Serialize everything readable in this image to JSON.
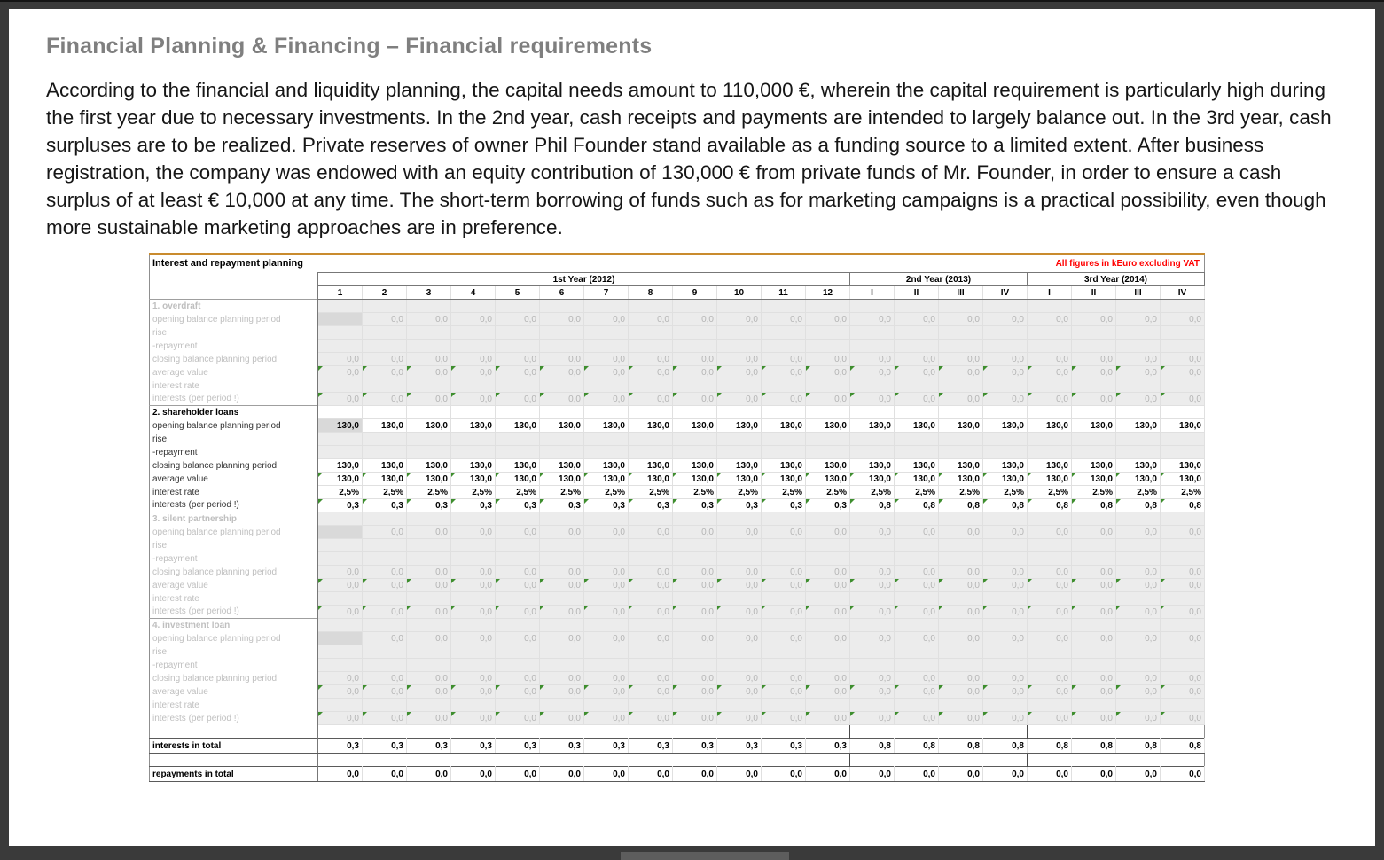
{
  "page": {
    "title": "Financial Planning & Financing – Financial requirements",
    "body": "According to the financial and liquidity planning, the capital needs amount to 110,000 €, wherein the capital requirement is particularly high during the first year due to necessary investments. In the 2nd year, cash receipts and payments are intended to largely balance out. In the 3rd year, cash surpluses are to be realized. Private reserves of owner Phil Founder stand available as a funding source to a limited extent. After business registration, the company was endowed with an equity contribution of 130,000 € from private funds of Mr. Founder, in order to ensure a cash surplus of at least € 10,000 at any time. The short-term borrowing of funds such as for marketing campaigns is a practical possibility, even though more sustainable marketing approaches are in preference."
  },
  "table": {
    "title": "Interest and repayment planning",
    "note": "All figures in kEuro excluding VAT",
    "colors": {
      "accent": "#c98b2e",
      "note": "#ff0000",
      "marker": "#3e8e2e"
    },
    "year_groups": [
      {
        "label": "1st Year (2012)",
        "span": 12
      },
      {
        "label": "2nd Year (2013)",
        "span": 4
      },
      {
        "label": "3rd Year (2014)",
        "span": 4
      }
    ],
    "period_headers": [
      "1",
      "2",
      "3",
      "4",
      "5",
      "6",
      "7",
      "8",
      "9",
      "10",
      "11",
      "12",
      "I",
      "II",
      "III",
      "IV",
      "I",
      "II",
      "III",
      "IV"
    ],
    "row_order": [
      "opening",
      "rise",
      "repayment",
      "closing",
      "average",
      "rate",
      "interests"
    ],
    "row_labels": {
      "opening": "opening balance planning period",
      "rise": "rise",
      "repayment": "-repayment",
      "closing": "closing balance planning period",
      "average": "average value",
      "rate": "interest rate",
      "interests": "interests (per period !)"
    },
    "sections": [
      {
        "name": "1. overdraft",
        "active": false,
        "rows": {
          "opening": [
            "",
            "0,0",
            "0,0",
            "0,0",
            "0,0",
            "0,0",
            "0,0",
            "0,0",
            "0,0",
            "0,0",
            "0,0",
            "0,0",
            "0,0",
            "0,0",
            "0,0",
            "0,0",
            "0,0",
            "0,0",
            "0,0",
            "0,0"
          ],
          "rise": [],
          "repayment": [],
          "closing": [
            "0,0",
            "0,0",
            "0,0",
            "0,0",
            "0,0",
            "0,0",
            "0,0",
            "0,0",
            "0,0",
            "0,0",
            "0,0",
            "0,0",
            "0,0",
            "0,0",
            "0,0",
            "0,0",
            "0,0",
            "0,0",
            "0,0",
            "0,0"
          ],
          "average": [
            "0,0",
            "0,0",
            "0,0",
            "0,0",
            "0,0",
            "0,0",
            "0,0",
            "0,0",
            "0,0",
            "0,0",
            "0,0",
            "0,0",
            "0,0",
            "0,0",
            "0,0",
            "0,0",
            "0,0",
            "0,0",
            "0,0",
            "0,0"
          ],
          "rate": [],
          "interests": [
            "0,0",
            "0,0",
            "0,0",
            "0,0",
            "0,0",
            "0,0",
            "0,0",
            "0,0",
            "0,0",
            "0,0",
            "0,0",
            "0,0",
            "0,0",
            "0,0",
            "0,0",
            "0,0",
            "0,0",
            "0,0",
            "0,0",
            "0,0"
          ]
        }
      },
      {
        "name": "2. shareholder loans",
        "active": true,
        "rows": {
          "opening": [
            "130,0",
            "130,0",
            "130,0",
            "130,0",
            "130,0",
            "130,0",
            "130,0",
            "130,0",
            "130,0",
            "130,0",
            "130,0",
            "130,0",
            "130,0",
            "130,0",
            "130,0",
            "130,0",
            "130,0",
            "130,0",
            "130,0",
            "130,0"
          ],
          "rise": [],
          "repayment": [],
          "closing": [
            "130,0",
            "130,0",
            "130,0",
            "130,0",
            "130,0",
            "130,0",
            "130,0",
            "130,0",
            "130,0",
            "130,0",
            "130,0",
            "130,0",
            "130,0",
            "130,0",
            "130,0",
            "130,0",
            "130,0",
            "130,0",
            "130,0",
            "130,0"
          ],
          "average": [
            "130,0",
            "130,0",
            "130,0",
            "130,0",
            "130,0",
            "130,0",
            "130,0",
            "130,0",
            "130,0",
            "130,0",
            "130,0",
            "130,0",
            "130,0",
            "130,0",
            "130,0",
            "130,0",
            "130,0",
            "130,0",
            "130,0",
            "130,0"
          ],
          "rate": [
            "2,5%",
            "2,5%",
            "2,5%",
            "2,5%",
            "2,5%",
            "2,5%",
            "2,5%",
            "2,5%",
            "2,5%",
            "2,5%",
            "2,5%",
            "2,5%",
            "2,5%",
            "2,5%",
            "2,5%",
            "2,5%",
            "2,5%",
            "2,5%",
            "2,5%",
            "2,5%"
          ],
          "interests": [
            "0,3",
            "0,3",
            "0,3",
            "0,3",
            "0,3",
            "0,3",
            "0,3",
            "0,3",
            "0,3",
            "0,3",
            "0,3",
            "0,3",
            "0,8",
            "0,8",
            "0,8",
            "0,8",
            "0,8",
            "0,8",
            "0,8",
            "0,8"
          ]
        }
      },
      {
        "name": "3. silent partnership",
        "active": false,
        "rows": {
          "opening": [
            "",
            "0,0",
            "0,0",
            "0,0",
            "0,0",
            "0,0",
            "0,0",
            "0,0",
            "0,0",
            "0,0",
            "0,0",
            "0,0",
            "0,0",
            "0,0",
            "0,0",
            "0,0",
            "0,0",
            "0,0",
            "0,0",
            "0,0"
          ],
          "rise": [],
          "repayment": [],
          "closing": [
            "0,0",
            "0,0",
            "0,0",
            "0,0",
            "0,0",
            "0,0",
            "0,0",
            "0,0",
            "0,0",
            "0,0",
            "0,0",
            "0,0",
            "0,0",
            "0,0",
            "0,0",
            "0,0",
            "0,0",
            "0,0",
            "0,0",
            "0,0"
          ],
          "average": [
            "0,0",
            "0,0",
            "0,0",
            "0,0",
            "0,0",
            "0,0",
            "0,0",
            "0,0",
            "0,0",
            "0,0",
            "0,0",
            "0,0",
            "0,0",
            "0,0",
            "0,0",
            "0,0",
            "0,0",
            "0,0",
            "0,0",
            "0,0"
          ],
          "rate": [],
          "interests": [
            "0,0",
            "0,0",
            "0,0",
            "0,0",
            "0,0",
            "0,0",
            "0,0",
            "0,0",
            "0,0",
            "0,0",
            "0,0",
            "0,0",
            "0,0",
            "0,0",
            "0,0",
            "0,0",
            "0,0",
            "0,0",
            "0,0",
            "0,0"
          ]
        }
      },
      {
        "name": "4. investment loan",
        "active": false,
        "rows": {
          "opening": [
            "",
            "0,0",
            "0,0",
            "0,0",
            "0,0",
            "0,0",
            "0,0",
            "0,0",
            "0,0",
            "0,0",
            "0,0",
            "0,0",
            "0,0",
            "0,0",
            "0,0",
            "0,0",
            "0,0",
            "0,0",
            "0,0",
            "0,0"
          ],
          "rise": [],
          "repayment": [],
          "closing": [
            "0,0",
            "0,0",
            "0,0",
            "0,0",
            "0,0",
            "0,0",
            "0,0",
            "0,0",
            "0,0",
            "0,0",
            "0,0",
            "0,0",
            "0,0",
            "0,0",
            "0,0",
            "0,0",
            "0,0",
            "0,0",
            "0,0",
            "0,0"
          ],
          "average": [
            "0,0",
            "0,0",
            "0,0",
            "0,0",
            "0,0",
            "0,0",
            "0,0",
            "0,0",
            "0,0",
            "0,0",
            "0,0",
            "0,0",
            "0,0",
            "0,0",
            "0,0",
            "0,0",
            "0,0",
            "0,0",
            "0,0",
            "0,0"
          ],
          "rate": [],
          "interests": [
            "0,0",
            "0,0",
            "0,0",
            "0,0",
            "0,0",
            "0,0",
            "0,0",
            "0,0",
            "0,0",
            "0,0",
            "0,0",
            "0,0",
            "0,0",
            "0,0",
            "0,0",
            "0,0",
            "0,0",
            "0,0",
            "0,0",
            "0,0"
          ]
        }
      }
    ],
    "totals": [
      {
        "label": "interests in total",
        "values": [
          "0,3",
          "0,3",
          "0,3",
          "0,3",
          "0,3",
          "0,3",
          "0,3",
          "0,3",
          "0,3",
          "0,3",
          "0,3",
          "0,3",
          "0,8",
          "0,8",
          "0,8",
          "0,8",
          "0,8",
          "0,8",
          "0,8",
          "0,8"
        ]
      },
      {
        "label": "repayments in total",
        "values": [
          "0,0",
          "0,0",
          "0,0",
          "0,0",
          "0,0",
          "0,0",
          "0,0",
          "0,0",
          "0,0",
          "0,0",
          "0,0",
          "0,0",
          "0,0",
          "0,0",
          "0,0",
          "0,0",
          "0,0",
          "0,0",
          "0,0",
          "0,0"
        ]
      }
    ]
  }
}
